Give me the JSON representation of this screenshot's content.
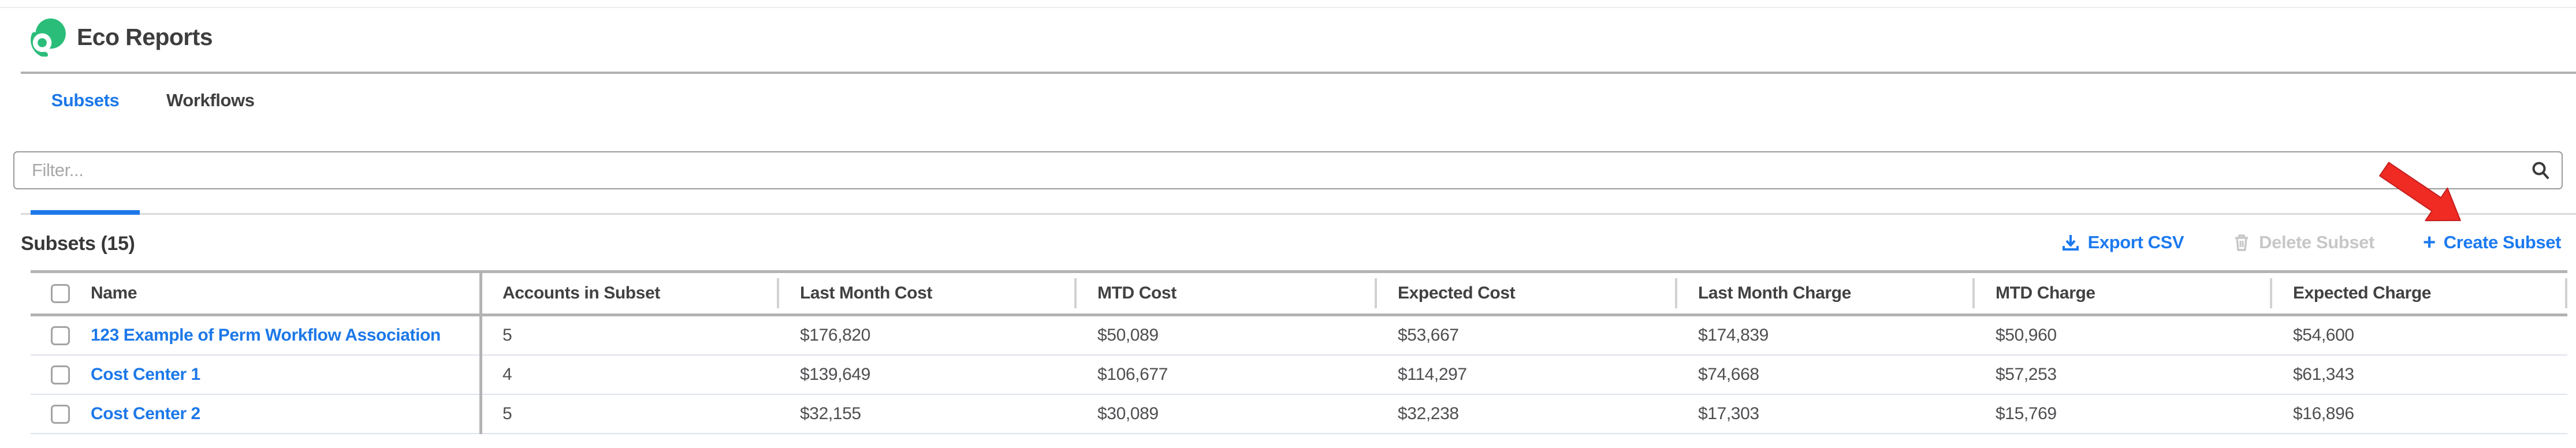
{
  "header": {
    "title": "Eco Reports"
  },
  "tabs": [
    {
      "label": "Subsets",
      "active": true
    },
    {
      "label": "Workflows",
      "active": false
    }
  ],
  "filter": {
    "placeholder": "Filter...",
    "value": ""
  },
  "section": {
    "title": "Subsets (15)"
  },
  "actions": {
    "export_csv": "Export CSV",
    "delete_subset": "Delete Subset",
    "create_subset": "Create Subset"
  },
  "icons": {
    "logo": "eco-reports-logo",
    "search": "search-icon",
    "export": "download-icon",
    "delete": "trash-icon",
    "create": "plus-icon",
    "annotation": "red-arrow-pointing-to-create-subset"
  },
  "table": {
    "columns": [
      "Name",
      "Accounts in Subset",
      "Last Month Cost",
      "MTD Cost",
      "Expected Cost",
      "Last Month Charge",
      "MTD Charge",
      "Expected Charge"
    ],
    "rows": [
      {
        "name": "123 Example of Perm Workflow Association",
        "selected": false,
        "values": [
          "5",
          "$176,820",
          "$50,089",
          "$53,667",
          "$174,839",
          "$50,960",
          "$54,600"
        ]
      },
      {
        "name": "Cost Center 1",
        "selected": false,
        "values": [
          "4",
          "$139,649",
          "$106,677",
          "$114,297",
          "$74,668",
          "$57,253",
          "$61,343"
        ]
      },
      {
        "name": "Cost Center 2",
        "selected": false,
        "values": [
          "5",
          "$32,155",
          "$30,089",
          "$32,238",
          "$17,303",
          "$15,769",
          "$16,896"
        ]
      }
    ]
  },
  "colors": {
    "accent_blue": "#1c78e8",
    "action_blue": "#1b7af0",
    "disabled_gray": "#c7c7c7",
    "logo_green": "#2abd7a",
    "annotation_red": "#ef2b24",
    "border_gray": "#b3b3b3",
    "row_separator": "#dde2ec"
  },
  "annotation": {
    "type": "red-arrow",
    "points_to": "Create Subset"
  }
}
